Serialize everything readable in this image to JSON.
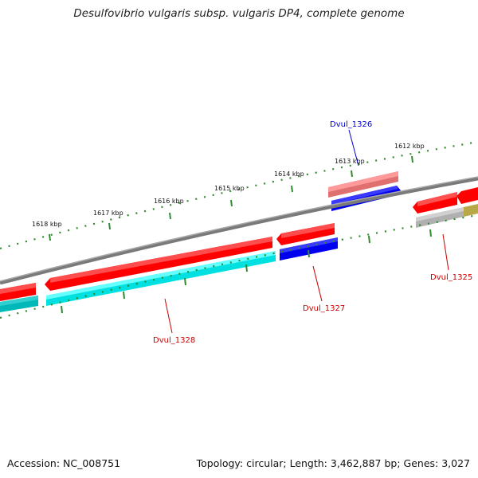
{
  "title": "Desulfovibrio vulgaris subsp. vulgaris DP4, complete genome",
  "footer": {
    "accession": "Accession: NC_008751",
    "summary": "Topology: circular; Length: 3,462,887 bp; Genes: 3,027"
  },
  "ticks": [
    "1618 kbp",
    "1617 kbp",
    "1616 kbp",
    "1615 kbp",
    "1614 kbp",
    "1613 kbp",
    "1612 kbp"
  ],
  "genes": [
    {
      "label": "Dvul_1326",
      "color": "#0000cc"
    },
    {
      "label": "Dvul_1327",
      "color": "#cc0000"
    },
    {
      "label": "Dvul_1328",
      "color": "#cc0000"
    },
    {
      "label": "Dvul_1325",
      "color": "#cc0000"
    }
  ],
  "colors": {
    "backbone": "#808080",
    "forward_cds": "#ff0000",
    "reverse_feature": "#00e5e5",
    "blue_feature": "#0000ee",
    "tick_marks": "#2e8b2e"
  }
}
